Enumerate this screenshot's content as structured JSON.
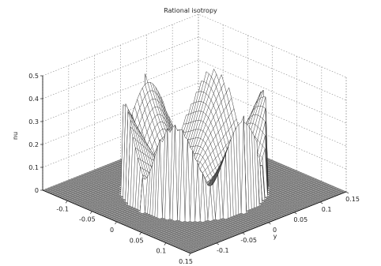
{
  "chart_data": {
    "type": "surface",
    "title": "Rational isotropy",
    "xlabel": "",
    "ylabel": "y",
    "zlabel": "nu",
    "x_ticks": [
      "-0.1",
      "-0.05",
      "0",
      "0.05",
      "0.1",
      "0.15"
    ],
    "y_ticks": [
      "-0.1",
      "-0.05",
      "0",
      "0.05",
      "0.1",
      "0.15"
    ],
    "z_ticks": [
      "0",
      "0.1",
      "0.2",
      "0.3",
      "0.4",
      "0.5"
    ],
    "xlim": [
      -0.15,
      0.15
    ],
    "ylim": [
      -0.15,
      0.15
    ],
    "zlim": [
      0,
      0.5
    ],
    "grid": true,
    "surface": {
      "description_values": {
        "outer_radius": 0.1,
        "lobes": 6,
        "peak_value": 0.42,
        "rim_value": 0.0,
        "floor_value": 0.0
      }
    }
  }
}
